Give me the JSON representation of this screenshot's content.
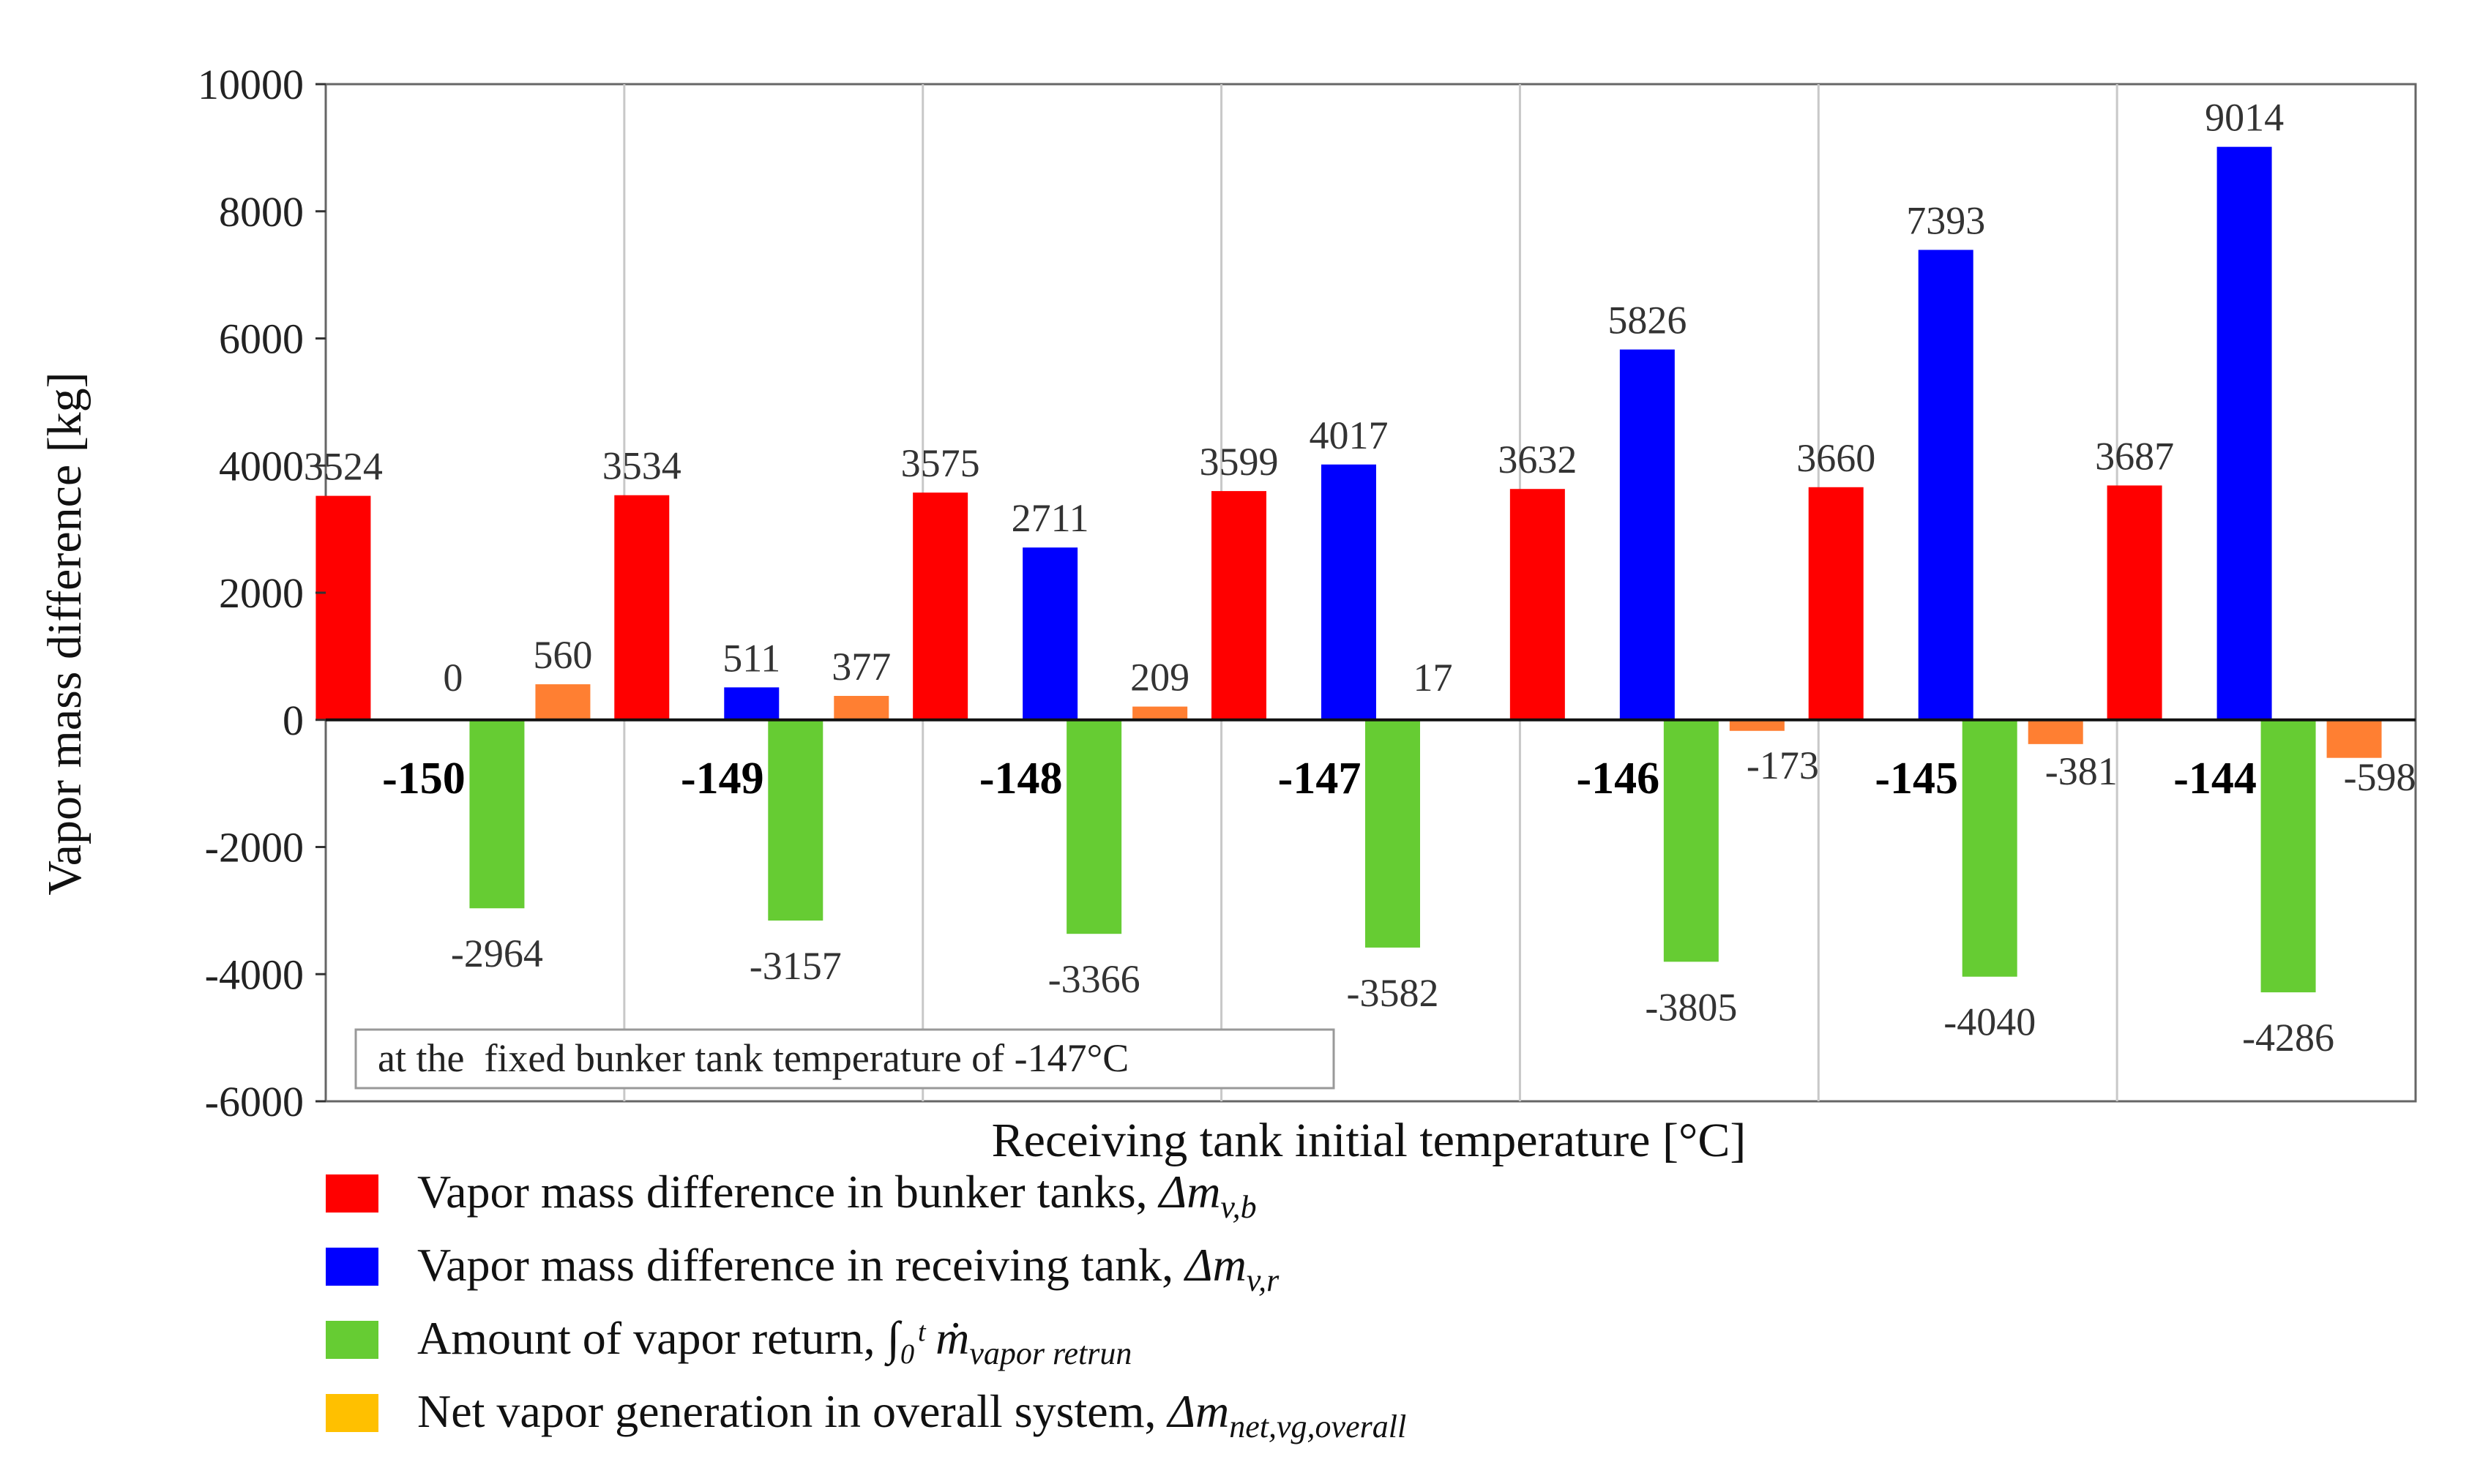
{
  "chart_data": {
    "type": "bar",
    "xlabel": "Receiving tank initial temperature [°C]",
    "ylabel": "Vapor mass difference [kg]",
    "ylim": [
      -6000,
      10000
    ],
    "yticks": [
      10000,
      8000,
      6000,
      4000,
      2000,
      0,
      -2000,
      -4000,
      -6000
    ],
    "grid": "vertical category separators",
    "legend_position": "bottom-left",
    "categories": [
      "-150",
      "-149",
      "-148",
      "-147",
      "-146",
      "-145",
      "-144"
    ],
    "series": [
      {
        "name": "Vapor mass difference in bunker tanks,",
        "symbol": "Δm",
        "subscript": "v,b",
        "color": "#ff0000",
        "values": [
          3524,
          3534,
          3575,
          3599,
          3632,
          3660,
          3687
        ]
      },
      {
        "name": "Vapor mass difference in receiving tank,",
        "symbol": "Δm",
        "subscript": "v,r",
        "color": "#0000ff",
        "values": [
          0,
          511,
          2711,
          4017,
          5826,
          7393,
          9014
        ]
      },
      {
        "name": "Amount of vapor return,",
        "symbol": "∫₀ᵗ ṁ",
        "subscript": "vapor retrun",
        "color": "#66cc33",
        "values": [
          -2964,
          -3157,
          -3366,
          -3582,
          -3805,
          -4040,
          -4286
        ]
      },
      {
        "name": "Net vapor generation in overall system,",
        "symbol": "Δm",
        "subscript": "net,vg,overall",
        "color": "#ffc000",
        "bar_color": "#ff7f32",
        "values": [
          560,
          377,
          209,
          17,
          -173,
          -381,
          -598
        ]
      }
    ],
    "annotation": "at the  fixed bunker tank temperature of -147°C"
  }
}
